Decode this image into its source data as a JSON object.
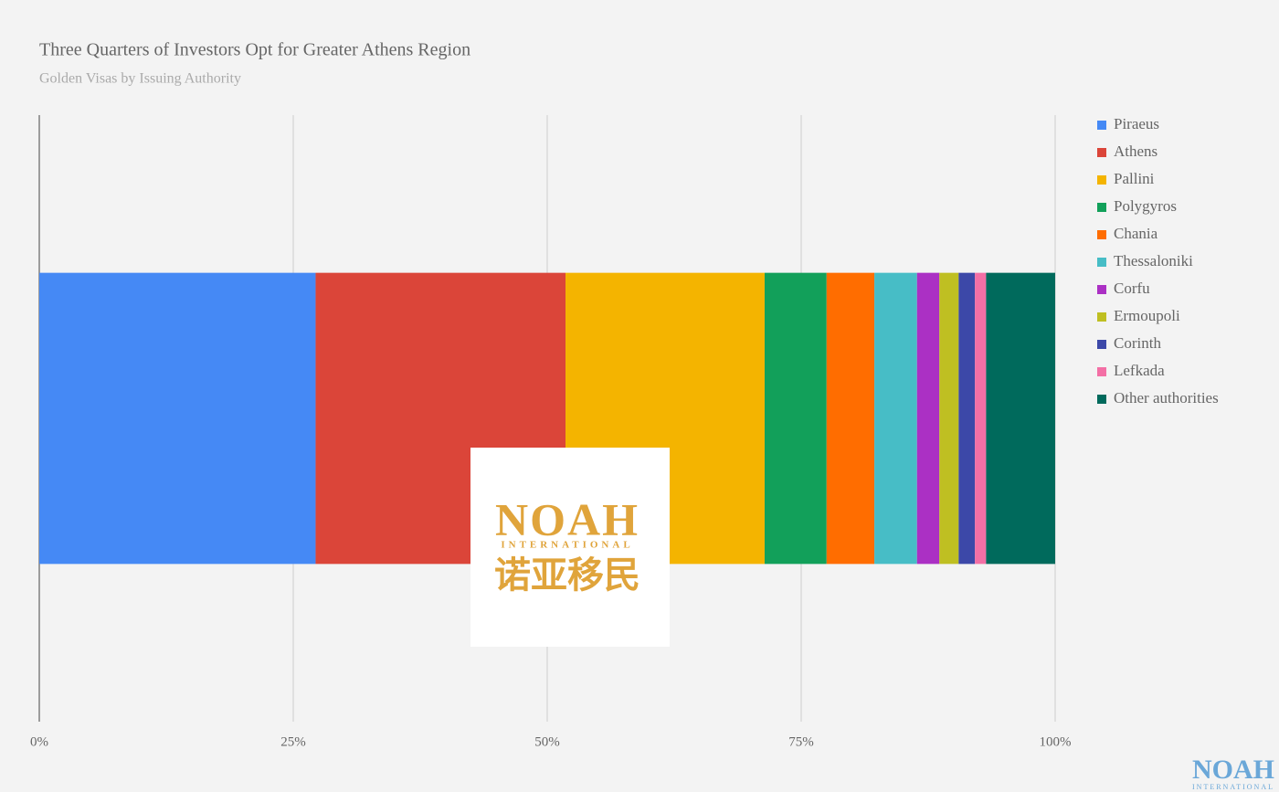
{
  "chart_data": {
    "type": "stacked-bar-horizontal",
    "title": "Three Quarters of Investors Opt for Greater Athens Region",
    "subtitle": "Golden Visas by Issuing Authority",
    "categories": [
      null
    ],
    "series": [
      {
        "name": "Piraeus",
        "color": "#4589f5",
        "values": [
          27.2
        ]
      },
      {
        "name": "Athens",
        "color": "#db4539",
        "values": [
          24.6
        ]
      },
      {
        "name": "Pallini",
        "color": "#f4b400",
        "values": [
          19.6
        ]
      },
      {
        "name": "Polygyros",
        "color": "#12a05a",
        "values": [
          6.1
        ]
      },
      {
        "name": "Chania",
        "color": "#ff6d00",
        "values": [
          4.7
        ]
      },
      {
        "name": "Thessaloniki",
        "color": "#47bdc6",
        "values": [
          4.2
        ]
      },
      {
        "name": "Corfu",
        "color": "#ab30c4",
        "values": [
          2.2
        ]
      },
      {
        "name": "Ermoupoli",
        "color": "#bfbf22",
        "values": [
          1.9
        ]
      },
      {
        "name": "Corinth",
        "color": "#3c48a8",
        "values": [
          1.6
        ]
      },
      {
        "name": "Lefkada",
        "color": "#f36fa5",
        "values": [
          1.1
        ]
      },
      {
        "name": "Other authorities",
        "color": "#006a5c",
        "values": [
          6.8
        ]
      }
    ],
    "xlim": [
      0,
      100
    ],
    "xticks": [
      {
        "value": 0,
        "label": "0%"
      },
      {
        "value": 25,
        "label": "25%"
      },
      {
        "value": 50,
        "label": "50%"
      },
      {
        "value": 75,
        "label": "75%"
      },
      {
        "value": 100,
        "label": "100%"
      }
    ],
    "grid": true,
    "legend": "right"
  },
  "watermark": {
    "brand": "NOAH",
    "tagline": "INTERNATIONAL",
    "chinese": "诺亚移民"
  },
  "corner_logo": {
    "brand": "NOAH",
    "tagline": "INTERNATIONAL"
  }
}
